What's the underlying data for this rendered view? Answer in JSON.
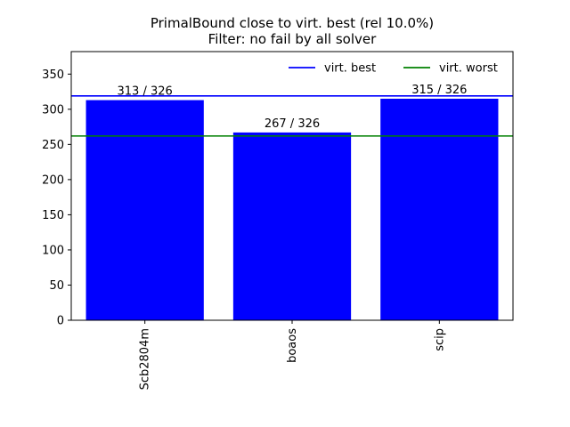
{
  "chart_data": {
    "type": "bar",
    "title": "PrimalBound close to virt. best (rel 10.0%)",
    "subtitle": "Filter: no fail by all solver",
    "xlabel": "",
    "ylabel": "",
    "categories": [
      "Scb2804m",
      "boaos",
      "scip"
    ],
    "values": [
      313,
      267,
      315
    ],
    "data_labels": [
      "313 / 326",
      "267 / 326",
      "315 / 326"
    ],
    "ylim": [
      0,
      382
    ],
    "yticks": [
      0,
      50,
      100,
      150,
      200,
      250,
      300,
      350
    ],
    "bar_color": "#0000ff",
    "reference_lines": [
      {
        "name": "virt. best",
        "value": 319,
        "color": "#0000ff"
      },
      {
        "name": "virt. worst",
        "value": 262,
        "color": "#008000"
      }
    ],
    "legend_position": "top-right",
    "grid": false
  }
}
